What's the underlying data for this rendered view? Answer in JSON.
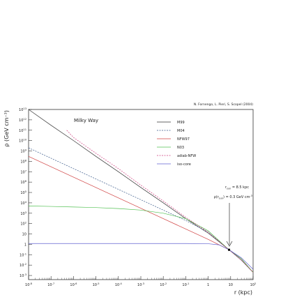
{
  "credit": "N. Fornengo, L. Pieri, S. Scopel (2004)",
  "chart_data": {
    "type": "line",
    "x_scale": "log",
    "y_scale": "log",
    "xlim": [
      1e-08,
      100
    ],
    "ylim": [
      0.0004,
      10000000000000.0
    ],
    "title": "",
    "annotation": "Milky Way",
    "xlabel": "r (kpc)",
    "ylabel": "ρ (GeV cm⁻³)",
    "x_ticks": [
      {
        "base": "10",
        "exp": "-8",
        "value": 1e-08
      },
      {
        "base": "10",
        "exp": "-7",
        "value": 1e-07
      },
      {
        "base": "10",
        "exp": "-6",
        "value": 1e-06
      },
      {
        "base": "10",
        "exp": "-5",
        "value": 1e-05
      },
      {
        "base": "10",
        "exp": "-4",
        "value": 0.0001
      },
      {
        "base": "10",
        "exp": "-3",
        "value": 0.001
      },
      {
        "base": "10",
        "exp": "-2",
        "value": 0.01
      },
      {
        "base": "10",
        "exp": "-1",
        "value": 0.1
      },
      {
        "base": "1",
        "exp": "",
        "value": 1
      },
      {
        "base": "10",
        "exp": "",
        "value": 10
      },
      {
        "base": "10",
        "exp": "2",
        "value": 100
      }
    ],
    "y_ticks": [
      {
        "base": "10",
        "exp": "-3",
        "value": 0.001
      },
      {
        "base": "10",
        "exp": "-2",
        "value": 0.01
      },
      {
        "base": "10",
        "exp": "-1",
        "value": 0.1
      },
      {
        "base": "1",
        "exp": "",
        "value": 1
      },
      {
        "base": "10",
        "exp": "",
        "value": 10
      },
      {
        "base": "10",
        "exp": "2",
        "value": 100.0
      },
      {
        "base": "10",
        "exp": "3",
        "value": 1000.0
      },
      {
        "base": "10",
        "exp": "4",
        "value": 10000.0
      },
      {
        "base": "10",
        "exp": "5",
        "value": 100000.0
      },
      {
        "base": "10",
        "exp": "6",
        "value": 1000000.0
      },
      {
        "base": "10",
        "exp": "7",
        "value": 10000000.0
      },
      {
        "base": "10",
        "exp": "8",
        "value": 100000000.0
      },
      {
        "base": "10",
        "exp": "9",
        "value": 1000000000.0
      },
      {
        "base": "10",
        "exp": "10",
        "value": 10000000000.0
      },
      {
        "base": "10",
        "exp": "11",
        "value": 100000000000.0
      },
      {
        "base": "10",
        "exp": "12",
        "value": 1000000000000.0
      },
      {
        "base": "10",
        "exp": "13",
        "value": 10000000000000.0
      }
    ],
    "series": [
      {
        "name": "M99",
        "color": "#333333",
        "dash": "",
        "points": [
          [
            1e-08,
            10000000000000.0
          ],
          [
            1e-07,
            300000000000.0
          ],
          [
            1e-06,
            10000000000.0
          ],
          [
            1e-05,
            300000000.0
          ],
          [
            0.0001,
            10000000.0
          ],
          [
            0.001,
            300000.0
          ],
          [
            0.01,
            10000.0
          ],
          [
            0.1,
            300
          ],
          [
            1,
            12
          ],
          [
            8.5,
            0.3
          ],
          [
            30,
            0.03
          ],
          [
            100,
            0.002
          ]
        ]
      },
      {
        "name": "M04",
        "color": "#3a5a8a",
        "dash": "2,1.5",
        "points": [
          [
            1e-08,
            2000000000.0
          ],
          [
            1e-07,
            200000000.0
          ],
          [
            1e-06,
            20000000.0
          ],
          [
            1e-05,
            2000000.0
          ],
          [
            0.0001,
            200000.0
          ],
          [
            0.001,
            20000.0
          ],
          [
            0.01,
            2000.0
          ],
          [
            0.1,
            200
          ],
          [
            1,
            15
          ],
          [
            8.5,
            0.3
          ],
          [
            30,
            0.03
          ],
          [
            100,
            0.002
          ]
        ]
      },
      {
        "name": "NFW97",
        "color": "#d04040",
        "dash": "",
        "points": [
          [
            1e-08,
            300000000.0
          ],
          [
            1e-07,
            30000000.0
          ],
          [
            1e-06,
            3000000.0
          ],
          [
            1e-05,
            300000.0
          ],
          [
            0.0001,
            30000.0
          ],
          [
            0.001,
            3000.0
          ],
          [
            0.01,
            300
          ],
          [
            0.1,
            30
          ],
          [
            1,
            3
          ],
          [
            8.5,
            0.3
          ],
          [
            30,
            0.04
          ],
          [
            100,
            0.002
          ]
        ]
      },
      {
        "name": "N03",
        "color": "#50c050",
        "dash": "",
        "points": [
          [
            1e-08,
            5000
          ],
          [
            1e-07,
            4500
          ],
          [
            1e-06,
            4000
          ],
          [
            1e-05,
            3500
          ],
          [
            0.0001,
            2800
          ],
          [
            0.001,
            2000
          ],
          [
            0.01,
            1000
          ],
          [
            0.1,
            300
          ],
          [
            1,
            20
          ],
          [
            8.5,
            0.3
          ],
          [
            30,
            0.04
          ],
          [
            100,
            0.002
          ]
        ]
      },
      {
        "name": "adiab-NFW",
        "color": "#d04080",
        "dash": "2,1.5",
        "points": [
          [
            5e-07,
            100000000000.0
          ],
          [
            1e-06,
            20000000000.0
          ],
          [
            1e-05,
            600000000.0
          ],
          [
            0.0001,
            20000000.0
          ],
          [
            0.001,
            500000.0
          ],
          [
            0.01,
            15000.0
          ],
          [
            0.1,
            400
          ],
          [
            1,
            15
          ],
          [
            8.5,
            0.3
          ],
          [
            30,
            0.03
          ],
          [
            100,
            0.002
          ]
        ]
      },
      {
        "name": "iso-core",
        "color": "#6060d0",
        "dash": "",
        "points": [
          [
            1e-08,
            1.2
          ],
          [
            0.01,
            1.2
          ],
          [
            0.1,
            1.2
          ],
          [
            1,
            1.15
          ],
          [
            3,
            0.9
          ],
          [
            8.5,
            0.3
          ],
          [
            30,
            0.05
          ],
          [
            100,
            0.004
          ]
        ]
      }
    ],
    "sun_marker": {
      "x": 8.5,
      "y": 0.3
    },
    "sun_annotation": {
      "line1": "r_sun = 8.5 kpc",
      "line2": "ρ(r_sun) = 0.3 GeV cm⁻³"
    },
    "grid": false,
    "legend_position": "top-center"
  }
}
